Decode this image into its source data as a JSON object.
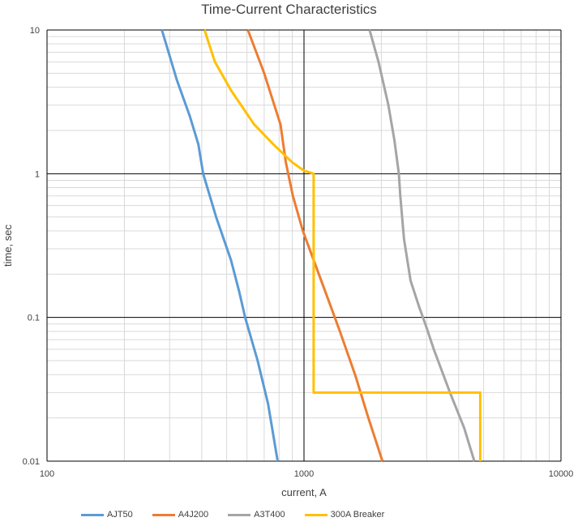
{
  "chart_data": {
    "type": "line",
    "title": "Time-Current Characteristics",
    "xlabel": "current, A",
    "ylabel": "time, sec",
    "x_scale": "log",
    "y_scale": "log",
    "xlim": [
      100,
      10000
    ],
    "ylim": [
      0.01,
      10
    ],
    "x_ticks": [
      100,
      1000,
      10000
    ],
    "x_tick_labels": [
      "100",
      "1000",
      "10000"
    ],
    "y_ticks": [
      0.01,
      0.1,
      1,
      10
    ],
    "y_tick_labels": [
      "0.01",
      "0.1",
      "1",
      "10"
    ],
    "grid": true,
    "legend_position": "bottom",
    "series": [
      {
        "name": "AJT50",
        "color": "#5b9bd5",
        "points": [
          [
            280,
            10
          ],
          [
            320,
            4.5
          ],
          [
            360,
            2.5
          ],
          [
            388,
            1.6
          ],
          [
            405,
            1.0
          ],
          [
            455,
            0.5
          ],
          [
            520,
            0.25
          ],
          [
            560,
            0.15
          ],
          [
            590,
            0.1
          ],
          [
            660,
            0.05
          ],
          [
            725,
            0.025
          ],
          [
            790,
            0.01
          ]
        ]
      },
      {
        "name": "A4J200",
        "color": "#ed7d31",
        "points": [
          [
            605,
            10
          ],
          [
            700,
            5
          ],
          [
            810,
            2.2
          ],
          [
            850,
            1.2
          ],
          [
            905,
            0.7
          ],
          [
            990,
            0.4
          ],
          [
            1100,
            0.24
          ],
          [
            1230,
            0.14
          ],
          [
            1380,
            0.08
          ],
          [
            1580,
            0.04
          ],
          [
            1780,
            0.02
          ],
          [
            2020,
            0.01
          ]
        ]
      },
      {
        "name": "A3T400",
        "color": "#a5a5a5",
        "points": [
          [
            1800,
            10
          ],
          [
            1950,
            6
          ],
          [
            2130,
            3
          ],
          [
            2250,
            1.7
          ],
          [
            2340,
            1.0
          ],
          [
            2370,
            0.7
          ],
          [
            2450,
            0.35
          ],
          [
            2600,
            0.18
          ],
          [
            2800,
            0.12
          ],
          [
            3000,
            0.085
          ],
          [
            3200,
            0.06
          ],
          [
            3700,
            0.03
          ],
          [
            4200,
            0.017
          ],
          [
            4600,
            0.01
          ]
        ]
      },
      {
        "name": "300A Breaker",
        "color": "#ffc000",
        "points": [
          [
            410,
            10
          ],
          [
            450,
            6
          ],
          [
            520,
            3.8
          ],
          [
            640,
            2.2
          ],
          [
            760,
            1.6
          ],
          [
            900,
            1.2
          ],
          [
            1000,
            1.05
          ],
          [
            1090,
            1.0
          ],
          [
            1090,
            0.03
          ],
          [
            4850,
            0.03
          ],
          [
            4850,
            0.01
          ]
        ]
      }
    ]
  }
}
